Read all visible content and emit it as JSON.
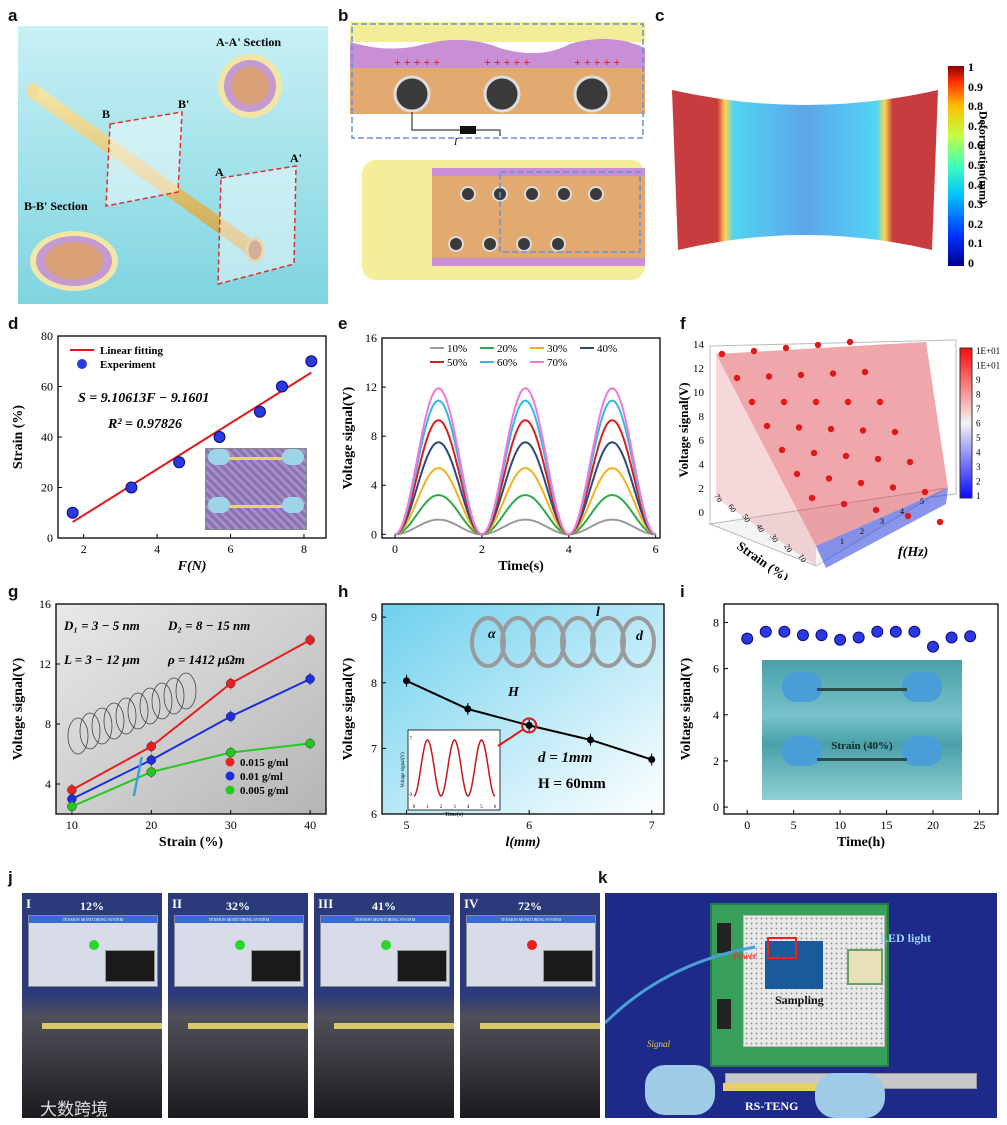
{
  "labels": {
    "a": "a",
    "b": "b",
    "c": "c",
    "d": "d",
    "e": "e",
    "f": "f",
    "g": "g",
    "h": "h",
    "i": "i",
    "j": "j",
    "k": "k"
  },
  "panel_a": {
    "aa": "A-A' Section",
    "bb": "B-B' Section",
    "A": "A",
    "Ap": "A'",
    "B": "B",
    "Bp": "B'"
  },
  "panel_b": {
    "i": "I"
  },
  "panel_c": {
    "ylabel": "Deformation(mm)",
    "ticks": [
      "1",
      "0.9",
      "0.8",
      "0.7",
      "0.6",
      "0.5",
      "0.4",
      "0.3",
      "0.2",
      "0.1",
      "0"
    ]
  },
  "chart_d": {
    "type": "scatter",
    "xlabel": "F(N)",
    "ylabel": "Strain (%)",
    "xticks": [
      "2",
      "4",
      "6",
      "8"
    ],
    "yticks": [
      "0",
      "20",
      "40",
      "60",
      "80"
    ],
    "xlim": [
      1.3,
      8.6
    ],
    "ylim": [
      0,
      80
    ],
    "legend": [
      "Linear fitting",
      "Experiment"
    ],
    "eq1": "S = 9.10613F − 9.1601",
    "eq2": "R² = 0.97826",
    "x": [
      1.7,
      3.3,
      4.6,
      5.7,
      6.8,
      7.4,
      8.2
    ],
    "y": [
      10,
      20,
      30,
      40,
      50,
      60,
      70
    ],
    "fit": {
      "slope": 9.10613,
      "intercept": -9.1601
    }
  },
  "chart_e": {
    "type": "line",
    "xlabel": "Time(s)",
    "ylabel": "Voltage signal(V)",
    "xticks": [
      "0",
      "2",
      "4",
      "6"
    ],
    "yticks": [
      "0",
      "4",
      "8",
      "12",
      "16"
    ],
    "xlim": [
      -0.3,
      6.1
    ],
    "ylim": [
      -0.3,
      16
    ],
    "series": [
      {
        "name": "10%",
        "amp": 1.2,
        "color": "#9a9a9a"
      },
      {
        "name": "20%",
        "amp": 3.2,
        "color": "#2eaa4a"
      },
      {
        "name": "30%",
        "amp": 5.4,
        "color": "#f2b21b"
      },
      {
        "name": "40%",
        "amp": 7.5,
        "color": "#2b4a78"
      },
      {
        "name": "50%",
        "amp": 9.3,
        "color": "#d81e1e"
      },
      {
        "name": "60%",
        "amp": 10.9,
        "color": "#33b8e8"
      },
      {
        "name": "70%",
        "amp": 11.9,
        "color": "#f07ad6"
      }
    ]
  },
  "chart_f": {
    "type": "scatter3d",
    "ylabel": "Voltage signal(V)",
    "xlabel": "f(Hz)",
    "zlabel": "Strain (%)",
    "yticks": [
      "0",
      "2",
      "4",
      "6",
      "8",
      "10",
      "12",
      "14"
    ],
    "colorbar": [
      "1E+01",
      "1E+01",
      "9",
      "8",
      "7",
      "6",
      "5",
      "4",
      "3",
      "2",
      "1"
    ],
    "strain_ticks": [
      "70",
      "60",
      "50",
      "40",
      "30",
      "20",
      "10"
    ],
    "freq_ticks": [
      "1",
      "2",
      "3",
      "4",
      "5"
    ]
  },
  "chart_g": {
    "type": "line",
    "xlabel": "Strain (%)",
    "ylabel": "Voltage signal(V)",
    "xticks": [
      "10",
      "20",
      "30",
      "40"
    ],
    "yticks": [
      "4",
      "8",
      "12",
      "16"
    ],
    "xlim": [
      8,
      42
    ],
    "ylim": [
      2,
      16
    ],
    "params": [
      "D₁ = 3 − 5 nm",
      "D₂ = 8 − 15 nm",
      "L = 3 − 12 μm",
      "ρ = 1412 μΩm"
    ],
    "categories": [
      10,
      20,
      30,
      40
    ],
    "series": [
      {
        "name": "0.015 g/ml",
        "values": [
          3.6,
          6.5,
          10.7,
          13.6
        ],
        "color": "#e82020"
      },
      {
        "name": "0.01 g/ml",
        "values": [
          3.0,
          5.6,
          8.5,
          11.0
        ],
        "color": "#1a2ee0"
      },
      {
        "name": "0.005 g/ml",
        "values": [
          2.5,
          4.8,
          6.1,
          6.7
        ],
        "color": "#24c81e"
      }
    ]
  },
  "chart_h": {
    "type": "line",
    "xlabel": "l(mm)",
    "ylabel": "Voltage signal(V)",
    "xticks": [
      "5",
      "6",
      "7"
    ],
    "yticks": [
      "6",
      "7",
      "8",
      "9"
    ],
    "xlim": [
      4.8,
      7.1
    ],
    "ylim": [
      6,
      9.2
    ],
    "x": [
      5,
      5.5,
      6,
      6.5,
      7
    ],
    "y": [
      8.03,
      7.6,
      7.35,
      7.13,
      6.83
    ],
    "d_label": "d = 1mm",
    "H_label": "H = 60mm",
    "spring_labels": [
      "α",
      "l",
      "d",
      "H"
    ],
    "inset": {
      "xlabel": "Time(s)",
      "ylabel": "Voltage signal(V)",
      "xticks": [
        "0",
        "1",
        "2",
        "3",
        "4",
        "5",
        "6"
      ],
      "yticks": [
        "0",
        "7"
      ]
    }
  },
  "chart_i": {
    "type": "scatter",
    "xlabel": "Time(h)",
    "ylabel": "Voltage signal(V)",
    "xticks": [
      "0",
      "5",
      "10",
      "15",
      "20",
      "25"
    ],
    "yticks": [
      "0",
      "2",
      "4",
      "6",
      "8"
    ],
    "xlim": [
      -2.5,
      27
    ],
    "ylim": [
      -0.3,
      8.8
    ],
    "x": [
      0,
      2,
      4,
      6,
      8,
      10,
      12,
      14,
      16,
      18,
      20,
      22,
      24
    ],
    "y": [
      7.3,
      7.6,
      7.6,
      7.45,
      7.45,
      7.25,
      7.35,
      7.6,
      7.6,
      7.6,
      6.95,
      7.35,
      7.4
    ],
    "photo_label": "Strain (40%)"
  },
  "panel_j": {
    "frames": [
      {
        "roman": "I",
        "pct": "12%"
      },
      {
        "roman": "II",
        "pct": "32%"
      },
      {
        "roman": "III",
        "pct": "41%"
      },
      {
        "roman": "IV",
        "pct": "72%"
      }
    ],
    "screen_title": "TENSION MONITORING SYSTEM"
  },
  "panel_k": {
    "led": "LED light",
    "power": "Power",
    "sampling": "Sampling",
    "signal": "Signal",
    "rsteng": "RS-TENG"
  },
  "watermark": "大数跨境"
}
